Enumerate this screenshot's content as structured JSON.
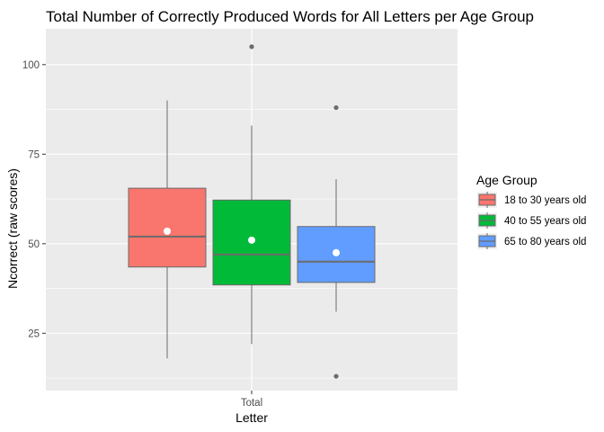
{
  "chart_data": {
    "type": "boxplot",
    "title": "Total Number of Correctly Produced Words for All Letters per Age Group",
    "xlabel": "Letter",
    "ylabel": "Ncorrect (raw scores)",
    "categories": [
      "Total"
    ],
    "ylim": [
      9,
      110
    ],
    "yticks": [
      25,
      50,
      75,
      100
    ],
    "grid": true,
    "legend": {
      "title": "Age Group",
      "position": "right"
    },
    "series": [
      {
        "name": "18 to 30 years old",
        "color": "#F8766D",
        "whisker_low": 18,
        "q1": 43.5,
        "median": 52,
        "q3": 65.5,
        "whisker_high": 90,
        "mean": 53.5,
        "outliers": []
      },
      {
        "name": "40 to 55 years old",
        "color": "#00BA38",
        "whisker_low": 22,
        "q1": 38.5,
        "median": 47,
        "q3": 62.2,
        "whisker_high": 83,
        "mean": 51,
        "outliers": [
          105
        ]
      },
      {
        "name": "65 to 80 years old",
        "color": "#619CFF",
        "whisker_low": 31,
        "q1": 39.2,
        "median": 45,
        "q3": 54.8,
        "whisker_high": 68,
        "mean": 47.5,
        "outliers": [
          88,
          13
        ]
      }
    ]
  }
}
